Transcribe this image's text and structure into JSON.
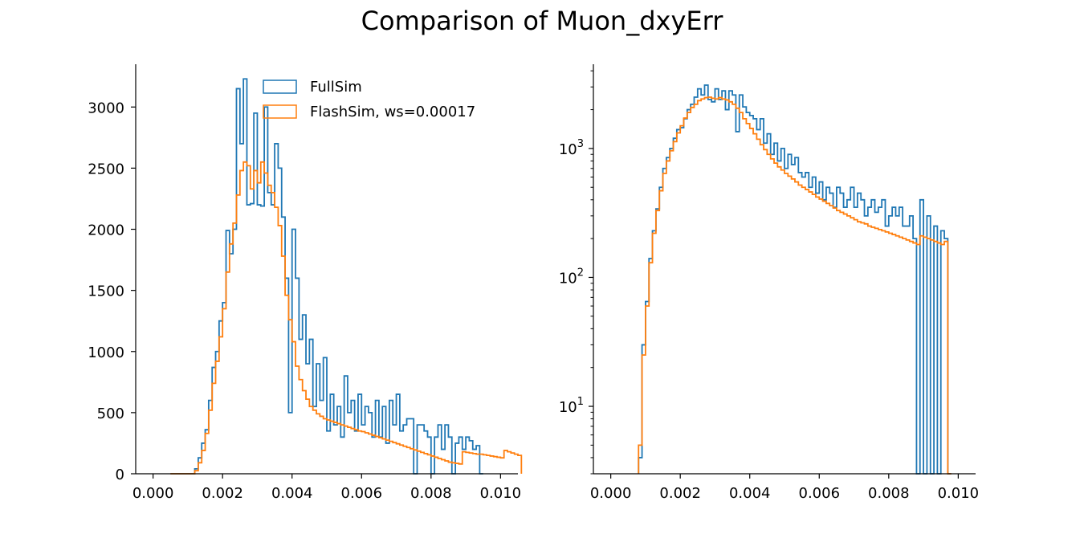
{
  "figure": {
    "title": "Comparison of Muon_dxyErr"
  },
  "colors": {
    "fullsim": "#1f77b4",
    "flashsim": "#ff7f0e"
  },
  "chart_data": [
    {
      "type": "histogram-step",
      "scale": "linear",
      "xlim": [
        -0.0005,
        0.0105
      ],
      "ylim": [
        0,
        3350
      ],
      "xticks": [
        "0.000",
        "0.002",
        "0.004",
        "0.006",
        "0.008",
        "0.010"
      ],
      "yticks": [
        "0",
        "500",
        "1000",
        "1500",
        "2000",
        "2500",
        "3000"
      ],
      "legend": {
        "position": "top-center",
        "entries": [
          "FullSim",
          "FlashSim, ws=0.00017"
        ]
      },
      "grid": false,
      "bin_width": 0.0001,
      "bins_start": 0.0005,
      "series": [
        {
          "name": "FullSim",
          "values": [
            0,
            0,
            0,
            0,
            0,
            0,
            0,
            40,
            130,
            250,
            360,
            600,
            870,
            1000,
            1250,
            1400,
            1990,
            1800,
            2000,
            3150,
            2700,
            3230,
            2200,
            2210,
            2950,
            2200,
            2190,
            3000,
            2300,
            2200,
            2700,
            2500,
            2100,
            1600,
            500,
            2000,
            1600,
            1100,
            1300,
            900,
            1100,
            550,
            900,
            600,
            950,
            350,
            650,
            400,
            550,
            300,
            800,
            500,
            600,
            350,
            650,
            400,
            550,
            500,
            300,
            600,
            300,
            550,
            250,
            600,
            400,
            650,
            350,
            400,
            450,
            450,
            0,
            400,
            400,
            350,
            300,
            0,
            300,
            400,
            200,
            400,
            300,
            0,
            250,
            300,
            200,
            300,
            270,
            200,
            230,
            0
          ]
        },
        {
          "name": "FlashSim, ws=0.00017",
          "values": [
            0,
            0,
            0,
            0,
            0,
            0,
            0,
            25,
            90,
            190,
            330,
            520,
            740,
            920,
            1120,
            1350,
            1650,
            1880,
            2050,
            2280,
            2480,
            2550,
            2520,
            2330,
            2480,
            2380,
            2550,
            2460,
            2360,
            2300,
            2180,
            2030,
            1780,
            1460,
            1260,
            1080,
            880,
            770,
            680,
            610,
            550,
            520,
            490,
            470,
            450,
            440,
            430,
            420,
            410,
            400,
            390,
            380,
            370,
            360,
            350,
            345,
            335,
            325,
            315,
            305,
            295,
            285,
            275,
            265,
            255,
            245,
            235,
            225,
            215,
            205,
            195,
            185,
            175,
            165,
            155,
            145,
            135,
            125,
            115,
            105,
            95,
            90,
            85,
            80,
            180,
            175,
            170,
            165,
            160,
            160,
            155,
            150,
            145,
            140,
            135,
            130,
            190,
            180,
            170,
            160,
            150
          ]
        }
      ]
    },
    {
      "type": "histogram-step",
      "scale": "log",
      "xlim": [
        -0.0005,
        0.0105
      ],
      "ylim": [
        3,
        4500
      ],
      "xticks": [
        "0.000",
        "0.002",
        "0.004",
        "0.006",
        "0.008",
        "0.010"
      ],
      "ytick_major": [
        10,
        100,
        1000
      ],
      "grid": false,
      "bin_width": 0.0001,
      "bins_start": 0.0008,
      "series": [
        {
          "name": "FullSim",
          "values": [
            4,
            30,
            65,
            140,
            230,
            340,
            500,
            700,
            850,
            1000,
            1200,
            1400,
            1450,
            1700,
            2000,
            2200,
            2500,
            2900,
            2600,
            3100,
            2400,
            2300,
            2900,
            2400,
            2800,
            2000,
            2800,
            2600,
            1350,
            2600,
            2100,
            1900,
            1800,
            1700,
            1400,
            1700,
            1100,
            1300,
            900,
            1100,
            800,
            1000,
            700,
            900,
            750,
            850,
            650,
            600,
            650,
            500,
            600,
            450,
            550,
            400,
            500,
            450,
            350,
            500,
            450,
            350,
            400,
            500,
            350,
            450,
            400,
            300,
            350,
            400,
            320,
            350,
            400,
            250,
            300,
            350,
            300,
            350,
            250,
            250,
            300,
            200,
            0,
            400,
            0,
            300,
            0,
            250,
            0,
            230,
            200,
            0
          ]
        },
        {
          "name": "FlashSim, ws=0.00017",
          "values": [
            5,
            25,
            60,
            130,
            220,
            330,
            470,
            640,
            800,
            960,
            1130,
            1320,
            1500,
            1720,
            1900,
            2080,
            2200,
            2350,
            2420,
            2480,
            2500,
            2450,
            2420,
            2480,
            2420,
            2380,
            2300,
            2200,
            2050,
            1900,
            1700,
            1560,
            1430,
            1300,
            1180,
            1070,
            980,
            900,
            830,
            770,
            720,
            680,
            640,
            610,
            580,
            550,
            520,
            500,
            480,
            460,
            440,
            420,
            405,
            390,
            375,
            360,
            345,
            330,
            320,
            310,
            300,
            290,
            280,
            270,
            265,
            260,
            250,
            245,
            240,
            235,
            230,
            225,
            220,
            215,
            210,
            205,
            200,
            195,
            190,
            185,
            180,
            210,
            205,
            200,
            195,
            190,
            185,
            180,
            190,
            0
          ]
        }
      ]
    }
  ]
}
